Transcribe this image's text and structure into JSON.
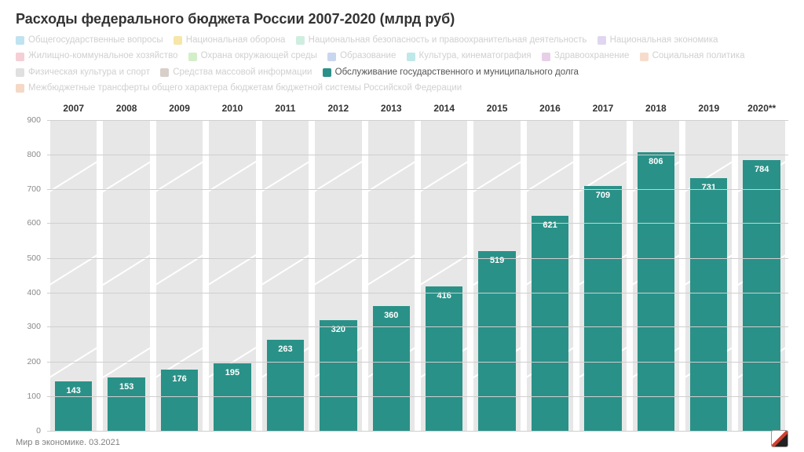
{
  "title": "Расходы федерального бюджета России 2007-2020 (млрд руб)",
  "footer": "Мир в экономике. 03.2021",
  "chart": {
    "type": "bar",
    "ylim": [
      0,
      900
    ],
    "ytick_step": 100,
    "grid_color": "#cfcfcf",
    "grid_label_color": "#8a8a8a",
    "background_color": "#ffffff",
    "ghost_color": "#e7e7e7",
    "bar_color": "#2a9188",
    "value_label_color": "#ffffff",
    "value_fontsize": 11,
    "year_fontsize": 12,
    "title_fontsize": 18,
    "years": [
      "2007",
      "2008",
      "2009",
      "2010",
      "2011",
      "2012",
      "2013",
      "2014",
      "2015",
      "2016",
      "2017",
      "2018",
      "2019",
      "2020**"
    ],
    "values": [
      143,
      153,
      176,
      195,
      263,
      320,
      360,
      416,
      519,
      621,
      709,
      806,
      731,
      784
    ]
  },
  "legend": {
    "inactive_text_color": "#d0d0d0",
    "active_text_color": "#555555",
    "items": [
      {
        "label": "Общегосударственные вопросы",
        "color": "#bfe3f0",
        "active": false
      },
      {
        "label": "Национальная оборона",
        "color": "#f6e6a8",
        "active": false
      },
      {
        "label": "Национальная безопасность и правоохранительная деятельность",
        "color": "#cfeee0",
        "active": false
      },
      {
        "label": "Национальная экономика",
        "color": "#e0d6ef",
        "active": false
      },
      {
        "label": "Жилищно-коммунальное хозяйство",
        "color": "#f5cfd6",
        "active": false
      },
      {
        "label": "Охрана окружающей среды",
        "color": "#d3efc9",
        "active": false
      },
      {
        "label": "Образование",
        "color": "#c9d6ef",
        "active": false
      },
      {
        "label": "Культура, кинематография",
        "color": "#bfe8e8",
        "active": false
      },
      {
        "label": "Здравоохранение",
        "color": "#e8cfe8",
        "active": false
      },
      {
        "label": "Социальная политика",
        "color": "#f7dccb",
        "active": false
      },
      {
        "label": "Физическая культура и спорт",
        "color": "#e0e0e0",
        "active": false
      },
      {
        "label": "Средства массовой информации",
        "color": "#d8d0c8",
        "active": false
      },
      {
        "label": "Обслуживание государственного и муниципального долга",
        "color": "#2a9188",
        "active": true
      },
      {
        "label": "Межбюджетные трансферты общего характера бюджетам бюджетной системы Российской Федерации",
        "color": "#f5d8c6",
        "active": false
      }
    ]
  }
}
